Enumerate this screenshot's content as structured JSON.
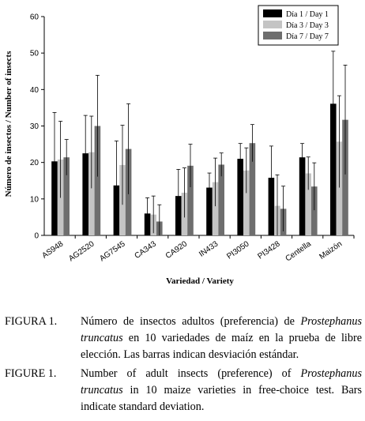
{
  "chart_data": {
    "type": "bar",
    "ylabel": "Número de insectos / Number of insects",
    "xlabel": "Variedad / Variety",
    "ylim": [
      0,
      60
    ],
    "yticks": [
      0,
      10,
      20,
      30,
      40,
      50,
      60
    ],
    "grid": false,
    "legend_position": "top-right",
    "categories": [
      "AS948",
      "AG2520",
      "AG7545",
      "CA343",
      "CA920",
      "IN433",
      "PI3050",
      "PI3428",
      "Centella",
      "Maizón"
    ],
    "series": [
      {
        "name": "Día 1 / Day 1",
        "color": "#000000",
        "values": [
          20.3,
          22.5,
          13.7,
          6.0,
          10.8,
          13.1,
          21.0,
          15.8,
          21.4,
          36.1
        ],
        "errors": [
          13.4,
          10.4,
          12.2,
          4.3,
          7.3,
          4.0,
          4.2,
          8.7,
          3.8,
          14.4
        ]
      },
      {
        "name": "Día 3 / Day 3",
        "color": "#c4c4c4",
        "values": [
          20.8,
          22.8,
          19.3,
          5.7,
          11.7,
          14.6,
          17.8,
          8.1,
          17.0,
          25.7
        ],
        "errors": [
          10.5,
          9.9,
          10.9,
          5.1,
          6.8,
          6.6,
          6.2,
          8.5,
          4.5,
          12.6
        ]
      },
      {
        "name": "Día 7 / Day 7",
        "color": "#6e6e6e",
        "values": [
          21.4,
          30.0,
          23.7,
          3.8,
          19.1,
          19.4,
          25.3,
          7.3,
          13.4,
          31.7
        ],
        "errors": [
          4.9,
          13.9,
          12.4,
          4.6,
          5.9,
          3.2,
          5.1,
          6.2,
          6.5,
          15.0
        ]
      }
    ]
  },
  "caption": {
    "es_label": "FIGURA 1.",
    "es_prefix": "Número de insectos adultos (preferencia) de ",
    "es_species": "Prostephanus truncatus",
    "es_suffix": " en 10 variedades de maíz en la prueba de libre elección. Las barras indican desviación estándar.",
    "en_label": "FIGURE 1.",
    "en_prefix": "Number of adult insects (preference) of ",
    "en_species": "Prostephanus truncatus",
    "en_suffix": " in 10 maize varieties in free-choice test. Bars indicate standard deviation."
  }
}
